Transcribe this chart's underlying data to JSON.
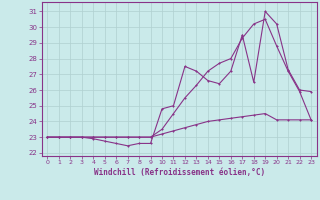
{
  "xlabel": "Windchill (Refroidissement éolien,°C)",
  "background_color": "#caeaea",
  "grid_color": "#b0d0d0",
  "line_color": "#883388",
  "xlim": [
    -0.5,
    23.5
  ],
  "ylim": [
    21.8,
    31.6
  ],
  "yticks": [
    22,
    23,
    24,
    25,
    26,
    27,
    28,
    29,
    30,
    31
  ],
  "xticks": [
    0,
    1,
    2,
    3,
    4,
    5,
    6,
    7,
    8,
    9,
    10,
    11,
    12,
    13,
    14,
    15,
    16,
    17,
    18,
    19,
    20,
    21,
    22,
    23
  ],
  "series1_x": [
    0,
    1,
    2,
    3,
    4,
    5,
    6,
    7,
    8,
    9,
    10,
    11,
    12,
    13,
    14,
    15,
    16,
    17,
    18,
    19,
    20,
    21,
    22,
    23
  ],
  "series1_y": [
    23.0,
    23.0,
    23.0,
    23.0,
    23.0,
    23.0,
    23.0,
    23.0,
    23.0,
    23.0,
    23.2,
    23.4,
    23.6,
    23.8,
    24.0,
    24.1,
    24.2,
    24.3,
    24.4,
    24.5,
    24.1,
    24.1,
    24.1,
    24.1
  ],
  "series2_x": [
    0,
    1,
    2,
    3,
    4,
    5,
    6,
    7,
    8,
    9,
    10,
    11,
    12,
    13,
    14,
    15,
    16,
    17,
    18,
    19,
    20,
    21,
    22,
    23
  ],
  "series2_y": [
    23.0,
    23.0,
    23.0,
    23.0,
    22.9,
    22.75,
    22.6,
    22.45,
    22.6,
    22.6,
    24.8,
    25.0,
    27.5,
    27.2,
    26.6,
    26.4,
    27.2,
    29.5,
    26.5,
    31.0,
    30.2,
    27.3,
    26.0,
    25.9
  ],
  "series3_x": [
    0,
    1,
    2,
    3,
    4,
    5,
    6,
    7,
    8,
    9,
    10,
    11,
    12,
    13,
    14,
    15,
    16,
    17,
    18,
    19,
    20,
    21,
    22,
    23
  ],
  "series3_y": [
    23.0,
    23.0,
    23.0,
    23.0,
    23.0,
    23.0,
    23.0,
    23.0,
    23.0,
    23.0,
    23.5,
    24.5,
    25.5,
    26.3,
    27.2,
    27.7,
    28.0,
    29.3,
    30.2,
    30.5,
    28.8,
    27.2,
    25.9,
    24.1
  ]
}
